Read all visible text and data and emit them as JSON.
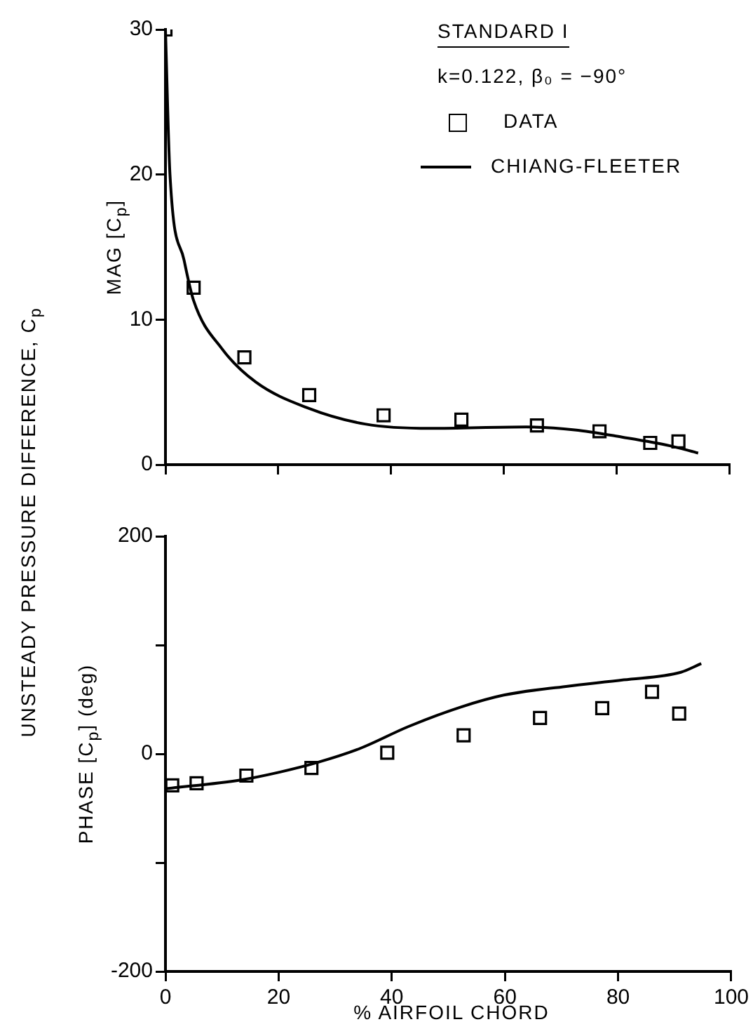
{
  "chart_data": [
    {
      "type": "scatter",
      "ylabel": "MAG [C$_{p}$]",
      "legend_title": "STANDARD I",
      "annotations": [
        "k=0.122, β₀ = −90°",
        "UNSTEADY PRESSURE DIFFERENCE, C$_{p}$"
      ],
      "legend": "top right",
      "tick_labels": "y",
      "xlim": [
        0,
        100
      ],
      "xticks": [
        0,
        20,
        40,
        60,
        80,
        100
      ],
      "ylim": [
        0,
        30
      ],
      "yticks": [
        0,
        10,
        20,
        30
      ],
      "series": [
        {
          "name": "DATA",
          "marker": "square",
          "color": "#000000",
          "x": [
            0,
            5,
            14,
            25.5,
            38.7,
            52.5,
            65.9,
            77,
            86,
            91
          ],
          "values": [
            30,
            12.2,
            7.4,
            4.8,
            3.4,
            3.1,
            2.7,
            2.3,
            1.5,
            1.6
          ]
        },
        {
          "name": "CHIANG-FLEETER",
          "type": "line",
          "line_style": "solid",
          "color": "#000000",
          "x": [
            0,
            0.8,
            3.3,
            5,
            10,
            16,
            25.3,
            35.4,
            47,
            64,
            72.6,
            81,
            89.5,
            94.5
          ],
          "values": [
            30,
            20,
            14.1,
            11.3,
            8,
            5.7,
            3.9,
            2.8,
            2.5,
            2.6,
            2.4,
            1.9,
            1.3,
            0.8
          ]
        }
      ]
    },
    {
      "type": "scatter",
      "ylabel": "PHASE [C$_{p}$] (deg)",
      "xlabel": "% AIRFOIL CHORD",
      "xlim": [
        0,
        100
      ],
      "xticks": [
        0,
        20,
        40,
        60,
        80,
        100
      ],
      "ylim": [
        -200,
        200
      ],
      "yticks": [
        -200,
        {
          "value": -100,
          "label": null
        },
        0,
        {
          "value": 100,
          "label": null
        },
        200
      ],
      "series": [
        {
          "marker": "square",
          "color": "#000000",
          "x": [
            1.2,
            5.5,
            14.3,
            25.8,
            39.2,
            52.7,
            66.2,
            77.2,
            86,
            90.8
          ],
          "values": [
            -29,
            -27,
            -20,
            -13,
            1,
            17,
            33,
            42,
            57,
            37
          ]
        },
        {
          "type": "line",
          "line_style": "solid",
          "color": "#000000",
          "x": [
            0,
            13.3,
            20,
            26.8,
            34.4,
            42.9,
            52.2,
            59.8,
            70.8,
            81,
            91.1,
            94.7
          ],
          "values": [
            -32,
            -24,
            -17,
            -8,
            5,
            25,
            43,
            54,
            62,
            68,
            75,
            83
          ]
        }
      ]
    }
  ]
}
